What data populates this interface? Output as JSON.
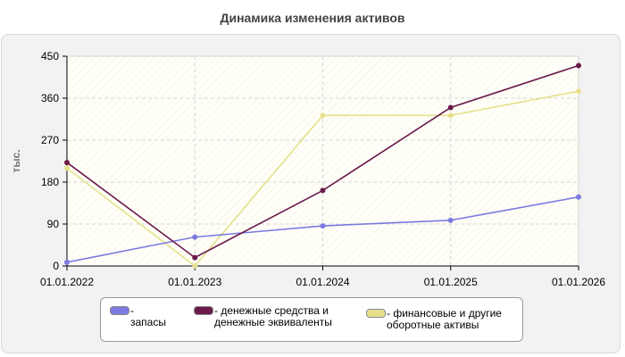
{
  "chart_data": {
    "type": "line",
    "title": "Динамика изменения активов",
    "ylabel": "тыс.",
    "x": [
      "01.01.2022",
      "01.01.2023",
      "01.01.2024",
      "01.01.2025",
      "01.01.2026"
    ],
    "ylim": [
      0,
      450
    ],
    "yticks": [
      0,
      90,
      180,
      270,
      360,
      450
    ],
    "grid": true,
    "legend_position": "bottom",
    "series": [
      {
        "name": "- запасы",
        "color": "#7b7be0",
        "values": [
          8,
          62,
          86,
          98,
          148
        ]
      },
      {
        "name": "- денежные средства и\nденежные эквиваленты",
        "color": "#6b1a4a",
        "values": [
          222,
          18,
          162,
          340,
          430
        ]
      },
      {
        "name": "- финансовые и другие\nоборотные активы",
        "color": "#e6e08c",
        "values": [
          210,
          0,
          323,
          323,
          375
        ]
      }
    ]
  }
}
